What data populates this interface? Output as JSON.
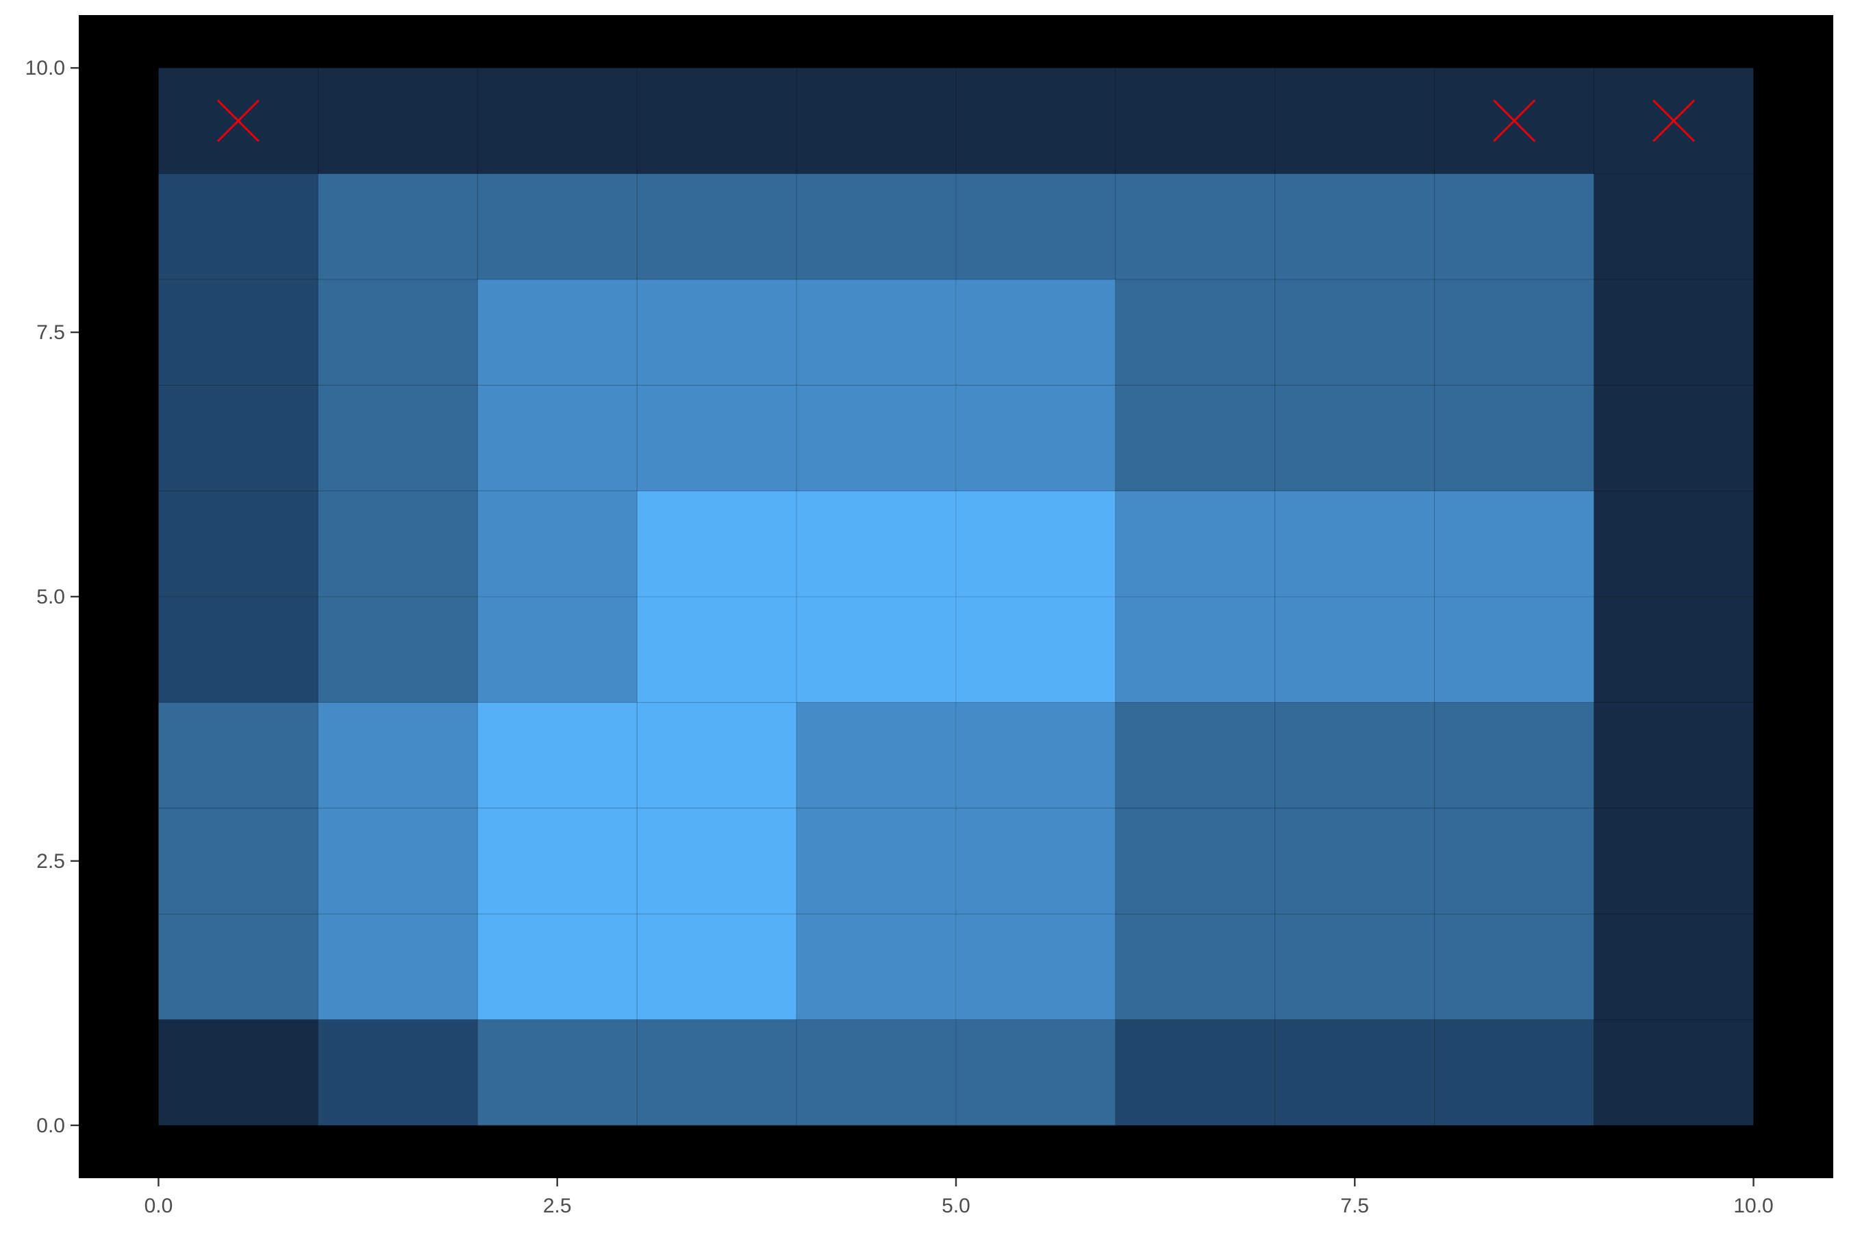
{
  "chart_data": {
    "type": "heatmap",
    "title": "",
    "xlabel": "",
    "ylabel": "",
    "xlim": [
      -0.5,
      10.5
    ],
    "ylim": [
      -0.5,
      10.5
    ],
    "x_ticks": [
      "0.0",
      "2.5",
      "5.0",
      "7.5",
      "10.0"
    ],
    "y_ticks": [
      "0.0",
      "2.5",
      "5.0",
      "7.5",
      "10.0"
    ],
    "grid": false,
    "panel_background": "#000000",
    "cell_colors": {
      "1": "#162b45",
      "2": "#21476c",
      "3": "#336a98",
      "4": "#448bc7",
      "5": "#55b0f8"
    },
    "grid_levels_rows_bottom_to_top": [
      [
        1,
        2,
        3,
        3,
        3,
        3,
        2,
        2,
        2,
        1
      ],
      [
        3,
        4,
        5,
        5,
        4,
        4,
        3,
        3,
        3,
        1
      ],
      [
        3,
        4,
        5,
        5,
        4,
        4,
        3,
        3,
        3,
        1
      ],
      [
        3,
        4,
        5,
        5,
        4,
        4,
        3,
        3,
        3,
        1
      ],
      [
        2,
        3,
        4,
        5,
        5,
        5,
        4,
        4,
        4,
        1
      ],
      [
        2,
        3,
        4,
        5,
        5,
        5,
        4,
        4,
        4,
        1
      ],
      [
        2,
        3,
        4,
        4,
        4,
        4,
        3,
        3,
        3,
        1
      ],
      [
        2,
        3,
        4,
        4,
        4,
        4,
        3,
        3,
        3,
        1
      ],
      [
        2,
        3,
        3,
        3,
        3,
        3,
        3,
        3,
        3,
        1
      ],
      [
        1,
        1,
        1,
        1,
        1,
        1,
        1,
        1,
        1,
        1
      ]
    ],
    "markers": {
      "shape": "x",
      "color": "#e8000b",
      "points": [
        {
          "x": 0.5,
          "y": 9.5
        },
        {
          "x": 8.5,
          "y": 9.5
        },
        {
          "x": 9.5,
          "y": 9.5
        }
      ]
    }
  }
}
